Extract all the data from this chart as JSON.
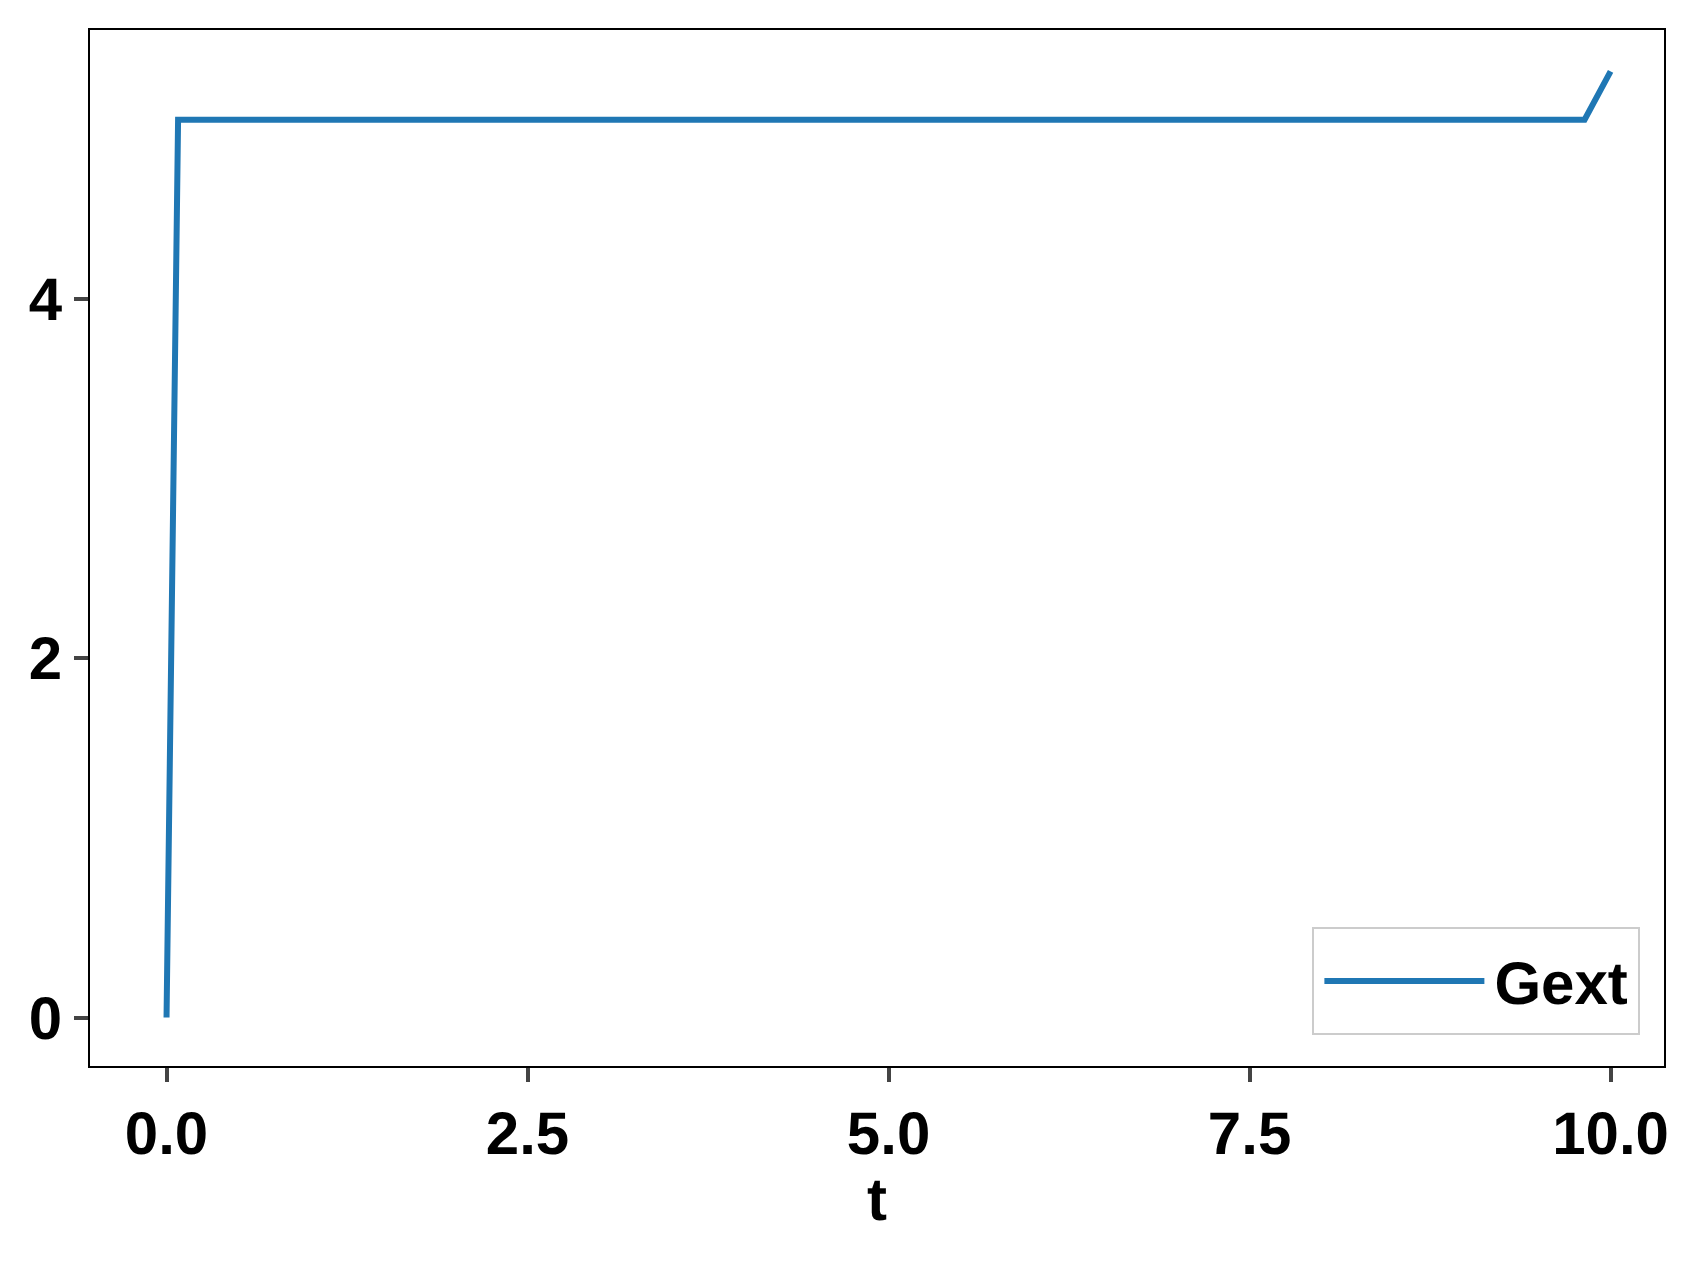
{
  "chart_data": {
    "type": "line",
    "xlabel": "t",
    "x": [
      0,
      0.08,
      9.82,
      10
    ],
    "series": [
      {
        "name": "Gext",
        "color": "#1f77b4",
        "values": [
          0,
          5.0,
          5.0,
          5.27
        ]
      }
    ],
    "xlim": [
      -0.53,
      10.37
    ],
    "xticks": [
      {
        "value": 0,
        "label": "0.0"
      },
      2.5,
      {
        "value": 5,
        "label": "5.0"
      },
      7.5,
      {
        "value": 10,
        "label": "10.0"
      }
    ],
    "ylim": [
      -0.27,
      5.5
    ],
    "yticks": [
      0,
      2,
      4
    ],
    "legend": "bottom right",
    "marker": "none",
    "line_style": "solid"
  }
}
